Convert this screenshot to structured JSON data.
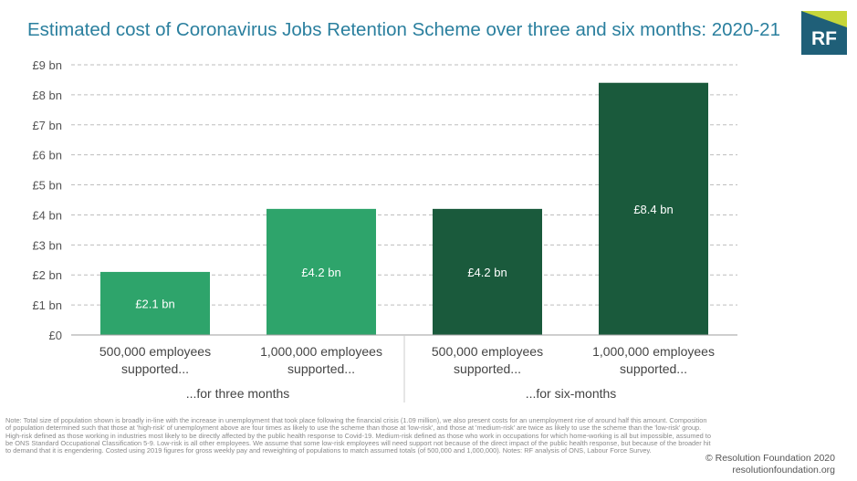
{
  "header": {
    "title": "Estimated cost of Coronavirus Jobs Retention Scheme over three and six months: 2020-21",
    "logo_text": "RF"
  },
  "chart_data": {
    "type": "bar",
    "title": "Estimated cost of Coronavirus Jobs Retention Scheme over three and six months: 2020-21",
    "ylim": [
      0,
      9
    ],
    "yticks": [
      {
        "value": 0,
        "label": "£0"
      },
      {
        "value": 1,
        "label": "£1 bn"
      },
      {
        "value": 2,
        "label": "£2 bn"
      },
      {
        "value": 3,
        "label": "£3 bn"
      },
      {
        "value": 4,
        "label": "£4 bn"
      },
      {
        "value": 5,
        "label": "£5 bn"
      },
      {
        "value": 6,
        "label": "£6 bn"
      },
      {
        "value": 7,
        "label": "£7 bn"
      },
      {
        "value": 8,
        "label": "£8 bn"
      },
      {
        "value": 9,
        "label": "£9 bn"
      }
    ],
    "grid": true,
    "categories": [
      [
        "500,000 employees",
        "supported..."
      ],
      [
        "1,000,000 employees",
        "supported..."
      ],
      [
        "500,000 employees",
        "supported..."
      ],
      [
        "1,000,000 employees",
        "supported..."
      ]
    ],
    "groups": [
      "...for three months",
      "...for six-months"
    ],
    "values": [
      2.1,
      4.2,
      4.2,
      8.4
    ],
    "value_labels": [
      "£2.1 bn",
      "£4.2 bn",
      "£4.2 bn",
      "£8.4 bn"
    ],
    "bar_colors": [
      "#2ea46b",
      "#2ea46b",
      "#1a5a3c",
      "#1a5a3c"
    ],
    "colors": {
      "three_months": "#2ea46b",
      "six_months": "#1a5a3c",
      "title": "#2a7f9e",
      "logo": "#1f5f78",
      "logo_accent": "#c6d63a"
    }
  },
  "footer": {
    "notes": "Note: Total size of population shown is broadly in-line with the increase in unemployment that took place following the financial crisis (1.09 million), we also present costs for an unemployment rise of around half this amount. Composition of population determined such that those at 'high-risk' of unemployment above are four times as likely to use the scheme than those at 'low-risk', and those at 'medium-risk' are twice as likely to use the scheme than the 'low-risk' group. High-risk defined as those working in industries most likely to be directly affected by the public health response to Covid-19. Medium-risk defined as those who work in occupations for which home-working is all but impossible, assumed to be ONS Standard Occupational Classification 5-9. Low-risk is all other employees. We assume that some low-risk employees will need support not because of the direct impact of the public health response, but because of the broader hit to demand that it is engendering. Costed using 2019 figures for gross weekly pay and reweighting of populations to match assumed totals (of 500,000 and 1,000,000). Notes: RF analysis of ONS, Labour Force Survey.",
    "credit_line1": "© Resolution Foundation 2020",
    "credit_line2": "resolutionfoundation.org"
  }
}
